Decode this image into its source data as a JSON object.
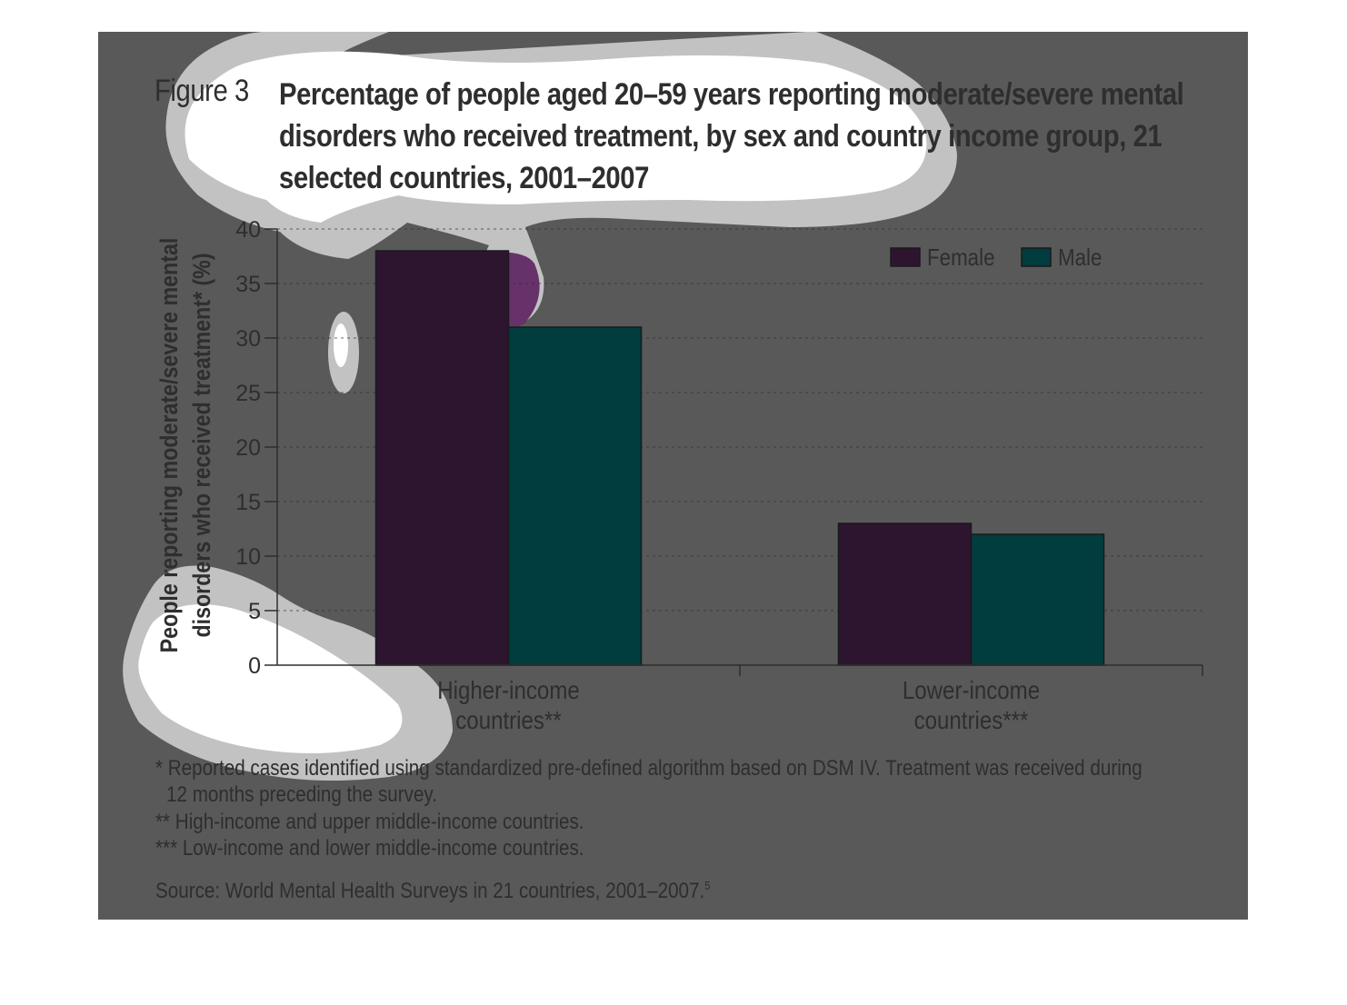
{
  "figure": {
    "label": "Figure 3",
    "title": "Percentage of people aged 20–59 years reporting moderate/severe mental disorders who received treatment, by sex and country income group, 21 selected countries, 2001–2007"
  },
  "chart_data": {
    "type": "bar",
    "categories": [
      [
        "Higher-income",
        "countries**"
      ],
      [
        "Lower-income",
        "countries***"
      ]
    ],
    "series": [
      {
        "name": "Female",
        "values": [
          38,
          13
        ],
        "color": "#2d1530"
      },
      {
        "name": "Male",
        "values": [
          31,
          12
        ],
        "color": "#013c3f"
      }
    ],
    "ylabel_lines": [
      "People reporting moderate/severe mental",
      "disorders who received treatment* (%)"
    ],
    "ylim": [
      0,
      40
    ],
    "yticks": [
      0,
      5,
      10,
      15,
      20,
      25,
      30,
      35,
      40
    ],
    "grid": true,
    "legend_position": "top-right"
  },
  "notes": {
    "footnote1_line1": "* Reported cases identified using standardized pre-defined algorithm based on DSM IV. Treatment was received during",
    "footnote1_line2": "12 months preceding the survey.",
    "footnote2": "** High-income and upper middle-income countries.",
    "footnote3": "*** Low-income and lower middle-income countries.",
    "source": "Source: World Mental Health Surveys in 21 countries, 2001–2007.",
    "source_ref": "5"
  },
  "colors": {
    "panel": "#595959",
    "text": "#2e2e2e",
    "overlay_light": "#ffffff",
    "overlay_mid": "#c2c2c2",
    "overlay_accent": "#5e2662"
  }
}
